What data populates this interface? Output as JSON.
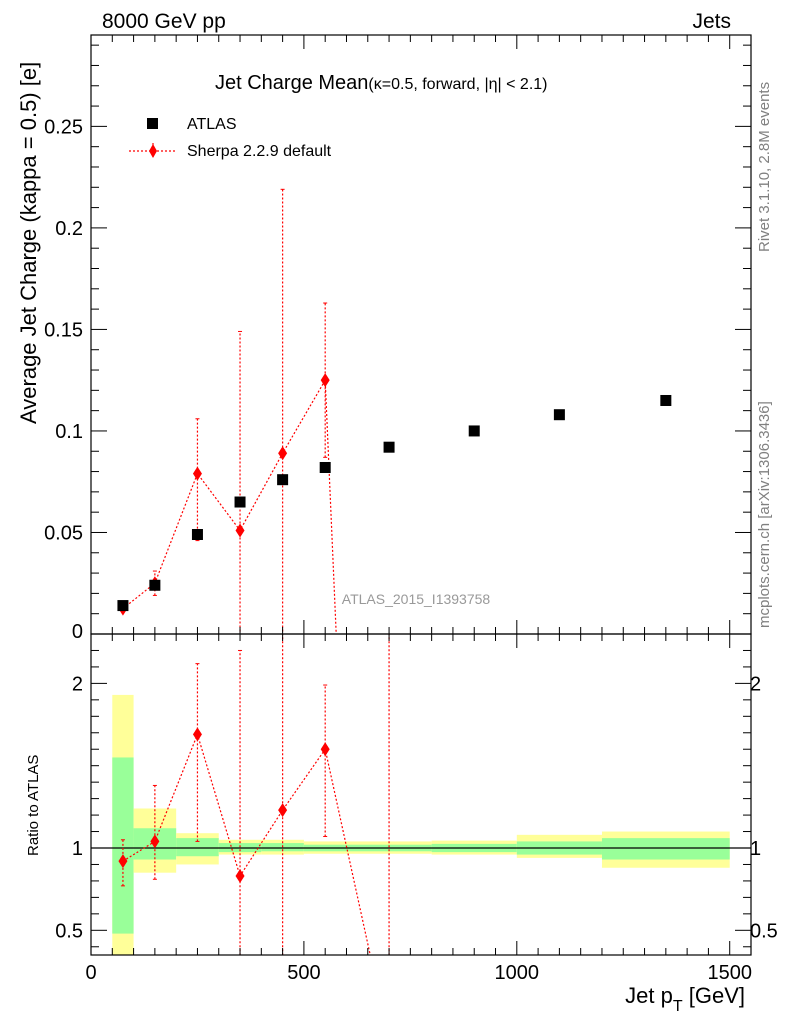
{
  "header": {
    "left": "8000 GeV pp",
    "right": "Jets"
  },
  "side_labels": {
    "rivet": "Rivet 3.1.10,  2.8M events",
    "mcplots": "mcplots.cern.ch [arXiv:1306.3436]"
  },
  "watermark": "ATLAS_2015_I1393758",
  "chart_data": {
    "type": "scatter",
    "title": "Jet Charge Mean",
    "subtitle": "(κ=0.5, forward, |η| < 2.1)",
    "xlabel": "Jet p",
    "xlabel_sub": "T",
    "xlabel_unit": " [GeV]",
    "ylabel": "Average Jet Charge (kappa = 0.5) [e]",
    "ratio_ylabel": "Ratio to ATLAS",
    "xlim": [
      0,
      1550
    ],
    "ylim": [
      0,
      0.295
    ],
    "ratio_ylim": [
      0.35,
      2.3
    ],
    "xticks": [
      0,
      500,
      1000,
      1500
    ],
    "yticks": [
      0.05,
      0.1,
      0.15,
      0.2,
      0.25
    ],
    "ytick_labels": [
      "0.05",
      "0.1",
      "0.15",
      "0.2",
      "0.25"
    ],
    "ytick_zero_label": "0",
    "ratio_yticks": [
      0.5,
      1,
      2
    ],
    "ratio_ytick_labels": [
      "0.5",
      "1",
      "2"
    ],
    "legend": {
      "placement": "top-left",
      "entries": [
        "ATLAS",
        "Sherpa 2.2.9 default"
      ]
    },
    "colors": {
      "data": "#000000",
      "mc": "#ff0000",
      "band_inner": "#99ff99",
      "band_outer": "#ffff99"
    },
    "bins": [
      {
        "lo": 50,
        "hi": 100,
        "x": 75,
        "data": 0.014
      },
      {
        "lo": 100,
        "hi": 200,
        "x": 150,
        "data": 0.024
      },
      {
        "lo": 200,
        "hi": 300,
        "x": 250,
        "data": 0.049
      },
      {
        "lo": 300,
        "hi": 400,
        "x": 350,
        "data": 0.065
      },
      {
        "lo": 400,
        "hi": 500,
        "x": 450,
        "data": 0.076
      },
      {
        "lo": 500,
        "hi": 600,
        "x": 550,
        "data": 0.082
      },
      {
        "lo": 600,
        "hi": 800,
        "x": 700,
        "data": 0.092
      },
      {
        "lo": 800,
        "hi": 1000,
        "x": 900,
        "data": 0.1
      },
      {
        "lo": 1000,
        "hi": 1200,
        "x": 1100,
        "data": 0.108
      },
      {
        "lo": 1200,
        "hi": 1500,
        "x": 1350,
        "data": 0.115
      }
    ],
    "ratio_bands": [
      {
        "lo": 50,
        "hi": 100,
        "inner": [
          0.48,
          1.55
        ],
        "outer": [
          0.33,
          1.93
        ]
      },
      {
        "lo": 100,
        "hi": 200,
        "inner": [
          0.93,
          1.12
        ],
        "outer": [
          0.85,
          1.24
        ]
      },
      {
        "lo": 200,
        "hi": 300,
        "inner": [
          0.95,
          1.06
        ],
        "outer": [
          0.9,
          1.09
        ]
      },
      {
        "lo": 300,
        "hi": 400,
        "inner": [
          0.975,
          1.03
        ],
        "outer": [
          0.96,
          1.05
        ]
      },
      {
        "lo": 400,
        "hi": 500,
        "inner": [
          0.98,
          1.03
        ],
        "outer": [
          0.96,
          1.05
        ]
      },
      {
        "lo": 500,
        "hi": 600,
        "inner": [
          0.98,
          1.02
        ],
        "outer": [
          0.965,
          1.04
        ]
      },
      {
        "lo": 600,
        "hi": 800,
        "inner": [
          0.98,
          1.02
        ],
        "outer": [
          0.965,
          1.04
        ]
      },
      {
        "lo": 800,
        "hi": 1000,
        "inner": [
          0.975,
          1.025
        ],
        "outer": [
          0.96,
          1.045
        ]
      },
      {
        "lo": 1000,
        "hi": 1200,
        "inner": [
          0.96,
          1.04
        ],
        "outer": [
          0.94,
          1.08
        ]
      },
      {
        "lo": 1200,
        "hi": 1500,
        "inner": [
          0.93,
          1.06
        ],
        "outer": [
          0.88,
          1.1
        ]
      }
    ],
    "mc_points": [
      {
        "x": 75,
        "y": 0.0125,
        "lo": 0.011,
        "hi": 0.0145
      },
      {
        "x": 150,
        "y": 0.025,
        "lo": 0.019,
        "hi": 0.031
      },
      {
        "x": 250,
        "y": 0.079,
        "lo": 0.046,
        "hi": 0.106
      },
      {
        "x": 350,
        "y": 0.051,
        "lo": -0.05,
        "hi": 0.149
      },
      {
        "x": 450,
        "y": 0.089,
        "lo": -0.05,
        "hi": 0.219
      },
      {
        "x": 550,
        "y": 0.125,
        "lo": 0.087,
        "hi": 0.163
      }
    ],
    "mc_main_tail": {
      "x": 580,
      "y": -0.02
    },
    "ratio_points": [
      {
        "x": 75,
        "y": 0.92,
        "lo": 0.77,
        "hi": 1.05
      },
      {
        "x": 150,
        "y": 1.04,
        "lo": 0.81,
        "hi": 1.38
      },
      {
        "x": 250,
        "y": 1.69,
        "lo": 1.04,
        "hi": 2.12
      },
      {
        "x": 350,
        "y": 0.83,
        "lo": 0.3,
        "hi": 2.2
      },
      {
        "x": 450,
        "y": 1.23,
        "lo": 0.3,
        "hi": 2.4
      },
      {
        "x": 550,
        "y": 1.6,
        "lo": 1.07,
        "hi": 1.99
      }
    ],
    "ratio_tail": [
      {
        "x": 660,
        "y": 0.3
      },
      {
        "x": 690,
        "y": 0.3
      }
    ],
    "ratio_extra_errors": [
      {
        "x": 700,
        "lo": 0.3,
        "hi": 2.4
      }
    ]
  }
}
